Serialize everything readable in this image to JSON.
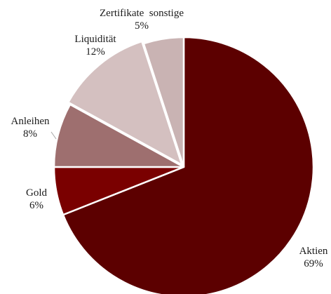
{
  "chart_data": {
    "type": "pie",
    "title": "",
    "start": "12 o'clock",
    "direction": "clockwise",
    "slices": [
      {
        "name": "Aktien",
        "value": 69,
        "label": "69%",
        "color": "#5c0000"
      },
      {
        "name": "Gold",
        "value": 6,
        "label": "6%",
        "color": "#7a0000"
      },
      {
        "name": "Anleihen",
        "value": 8,
        "label": "8%",
        "color": "#9e6f6f"
      },
      {
        "name": "Liquidität",
        "value": 12,
        "label": "12%",
        "color": "#d4c0c0"
      },
      {
        "name": "Zertifikate  sonstige",
        "value": 5,
        "label": "5%",
        "color": "#c9b3b3"
      }
    ],
    "separator_color": "#ffffff",
    "leader_line_color": "#a6a6a6",
    "legend": "none"
  }
}
